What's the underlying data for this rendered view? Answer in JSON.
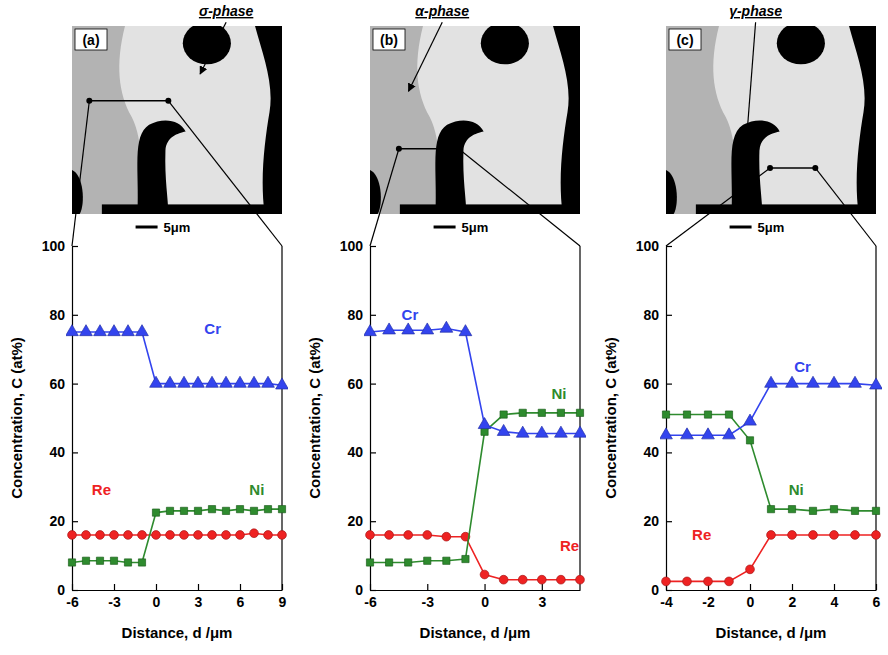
{
  "chart_data": [
    {
      "type": "line",
      "title": "σ-phase",
      "annotations": [
        "(a)",
        "5μm"
      ],
      "x_label": "Distance, d /μm",
      "y_label": "Concentration, C (at%)",
      "x": [
        -6,
        -5,
        -4,
        -3,
        -2,
        -1,
        0,
        1,
        2,
        3,
        4,
        5,
        6,
        7,
        8,
        9
      ],
      "xlim": [
        -6,
        9
      ],
      "xticks": [
        -6,
        -3,
        0,
        3,
        6,
        9
      ],
      "ylim": [
        0,
        100
      ],
      "yticks": [
        0,
        20,
        40,
        60,
        80,
        100
      ],
      "grid": false,
      "series": [
        {
          "name": "Cr",
          "color": "#3344ee",
          "marker": "triangle",
          "line_style": "solid",
          "values": [
            75,
            75,
            75,
            75,
            75,
            75,
            60,
            60,
            60,
            60,
            60,
            60,
            60,
            60,
            60,
            59.5
          ]
        },
        {
          "name": "Ni",
          "color": "#2e8b2e",
          "marker": "square",
          "line_style": "solid",
          "values": [
            8,
            8.5,
            8.5,
            8.5,
            8,
            8,
            22.5,
            23,
            23,
            23,
            23.5,
            23,
            23.5,
            23,
            23.5,
            23.5
          ]
        },
        {
          "name": "Re",
          "color": "#ee2222",
          "marker": "circle",
          "line_style": "solid",
          "values": [
            16,
            16,
            16,
            16,
            16,
            16,
            16,
            16,
            16,
            16,
            16,
            16,
            16,
            16.5,
            16,
            16
          ]
        }
      ]
    },
    {
      "type": "line",
      "title": "α-phase",
      "annotations": [
        "(b)",
        "5μm"
      ],
      "x_label": "Distance, d /μm",
      "y_label": "Concentration, C (at%)",
      "x": [
        -6,
        -5,
        -4,
        -3,
        -2,
        -1,
        0,
        1,
        2,
        3,
        4,
        5
      ],
      "xlim": [
        -6,
        5
      ],
      "xticks": [
        -6,
        -3,
        0,
        3
      ],
      "ylim": [
        0,
        100
      ],
      "yticks": [
        0,
        20,
        40,
        60,
        80,
        100
      ],
      "grid": false,
      "series": [
        {
          "name": "Cr",
          "color": "#3344ee",
          "marker": "triangle",
          "line_style": "solid",
          "values": [
            75,
            75.5,
            75.5,
            75.5,
            76,
            75,
            48,
            46,
            45.5,
            45.5,
            45.5,
            45.5
          ]
        },
        {
          "name": "Ni",
          "color": "#2e8b2e",
          "marker": "square",
          "line_style": "solid",
          "values": [
            8,
            8,
            8,
            8.5,
            8.5,
            9,
            46,
            51,
            51.5,
            51.5,
            51.5,
            51.5
          ]
        },
        {
          "name": "Re",
          "color": "#ee2222",
          "marker": "circle",
          "line_style": "solid",
          "values": [
            16,
            16,
            16,
            16,
            15.5,
            15.5,
            4.5,
            3,
            3,
            3,
            3,
            3
          ]
        }
      ]
    },
    {
      "type": "line",
      "title": "γ-phase",
      "annotations": [
        "(c)",
        "5μm"
      ],
      "x_label": "Distance, d /μm",
      "y_label": "Concentration, C (at%)",
      "x": [
        -4,
        -3,
        -2,
        -1,
        0,
        1,
        2,
        3,
        4,
        5,
        6
      ],
      "xlim": [
        -4,
        6
      ],
      "xticks": [
        -4,
        -2,
        0,
        2,
        4,
        6
      ],
      "ylim": [
        0,
        100
      ],
      "yticks": [
        0,
        20,
        40,
        60,
        80,
        100
      ],
      "grid": false,
      "series": [
        {
          "name": "Cr",
          "color": "#3344ee",
          "marker": "triangle",
          "line_style": "solid",
          "values": [
            45,
            45,
            45,
            45,
            49,
            60,
            60,
            60,
            60,
            60,
            59.5
          ]
        },
        {
          "name": "Ni",
          "color": "#2e8b2e",
          "marker": "square",
          "line_style": "solid",
          "values": [
            51,
            51,
            51,
            51,
            43.5,
            23.5,
            23.5,
            23,
            23.5,
            23,
            23
          ]
        },
        {
          "name": "Re",
          "color": "#ee2222",
          "marker": "circle",
          "line_style": "solid",
          "values": [
            2.5,
            2.5,
            2.5,
            2.5,
            6,
            16,
            16,
            16,
            16,
            16,
            16
          ]
        }
      ]
    }
  ]
}
